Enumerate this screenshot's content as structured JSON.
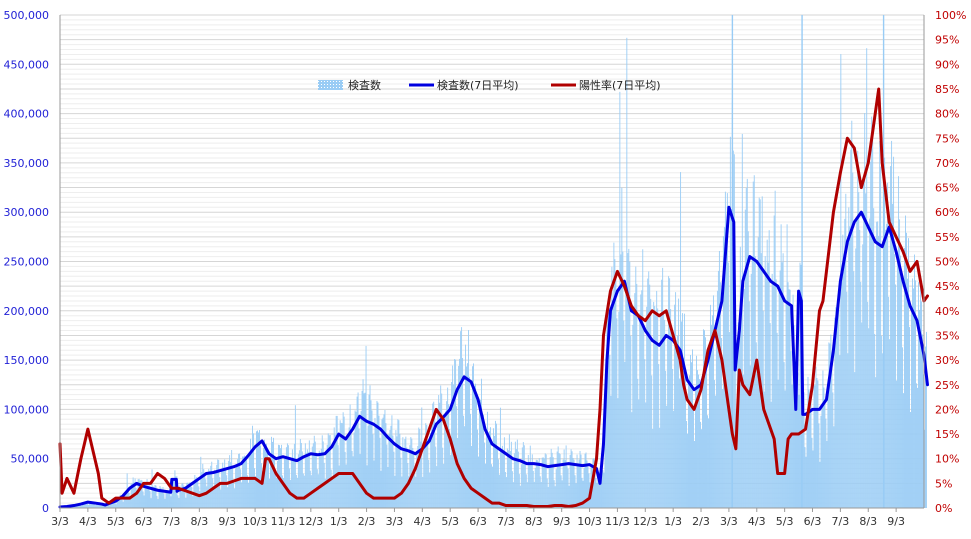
{
  "colors": {
    "bars": "#99ccf5",
    "avg_line": "#0000e0",
    "rate_line": "#b00000",
    "left_axis_text": "#1f1fd6",
    "right_axis_text": "#c00000",
    "grid": "#d6d6d6"
  },
  "chart_data": {
    "type": "bar+line",
    "title": "",
    "legend": {
      "placement": "top-center",
      "items": [
        "検査数",
        "検査数(7日平均)",
        "陽性率(7日平均)"
      ]
    },
    "x_ticks": [
      "3/3",
      "4/3",
      "5/3",
      "6/3",
      "7/3",
      "8/3",
      "9/3",
      "10/3",
      "11/3",
      "12/3",
      "1/3",
      "2/3",
      "3/3",
      "4/3",
      "5/3",
      "6/3",
      "7/3",
      "8/3",
      "9/3",
      "10/3",
      "11/3",
      "12/3",
      "1/3",
      "2/3",
      "3/3",
      "4/3",
      "5/3",
      "6/3",
      "7/3",
      "8/3",
      "9/3"
    ],
    "y_left": {
      "ylim": [
        0,
        500000
      ],
      "ticks": [
        "0",
        "50,000",
        "100,000",
        "150,000",
        "200,000",
        "250,000",
        "300,000",
        "350,000",
        "400,000",
        "450,000",
        "500,000"
      ]
    },
    "y_right": {
      "ylim": [
        0,
        100
      ],
      "ticks": [
        "0%",
        "5%",
        "10%",
        "15%",
        "20%",
        "25%",
        "30%",
        "35%",
        "40%",
        "45%",
        "50%",
        "55%",
        "60%",
        "65%",
        "70%",
        "75%",
        "80%",
        "85%",
        "90%",
        "95%",
        "100%"
      ]
    },
    "grid": true,
    "series": [
      {
        "name": "検査数(7日平均)",
        "axis": "left",
        "points": [
          [
            0,
            1000
          ],
          [
            1,
            1500
          ],
          [
            2,
            2500
          ],
          [
            3,
            4000
          ],
          [
            4,
            6000
          ],
          [
            5,
            5000
          ],
          [
            6,
            4000
          ],
          [
            6.5,
            3000
          ],
          [
            7,
            4500
          ],
          [
            8,
            7000
          ],
          [
            9,
            12000
          ],
          [
            10,
            20000
          ],
          [
            11,
            25000
          ],
          [
            12,
            22000
          ],
          [
            13,
            20000
          ],
          [
            14,
            18000
          ],
          [
            15,
            17000
          ],
          [
            15.9,
            16000
          ],
          [
            16.05,
            29000
          ],
          [
            16.7,
            29000
          ],
          [
            16.8,
            17000
          ],
          [
            17,
            18000
          ],
          [
            18,
            20000
          ],
          [
            19,
            25000
          ],
          [
            20,
            30000
          ],
          [
            21,
            35000
          ],
          [
            22,
            36000
          ],
          [
            23,
            38000
          ],
          [
            24,
            40000
          ],
          [
            25,
            42000
          ],
          [
            26,
            45000
          ],
          [
            27,
            53000
          ],
          [
            28,
            62000
          ],
          [
            29,
            68000
          ],
          [
            30,
            55000
          ],
          [
            31,
            50000
          ],
          [
            32,
            52000
          ],
          [
            33,
            50000
          ],
          [
            34,
            48000
          ],
          [
            35,
            52000
          ],
          [
            36,
            55000
          ],
          [
            37,
            54000
          ],
          [
            38,
            55000
          ],
          [
            39,
            62000
          ],
          [
            40,
            75000
          ],
          [
            41,
            70000
          ],
          [
            42,
            80000
          ],
          [
            43,
            93000
          ],
          [
            44,
            88000
          ],
          [
            45,
            85000
          ],
          [
            46,
            80000
          ],
          [
            47,
            72000
          ],
          [
            48,
            65000
          ],
          [
            49,
            60000
          ],
          [
            50,
            58000
          ],
          [
            51,
            55000
          ],
          [
            52,
            60000
          ],
          [
            53,
            68000
          ],
          [
            54,
            85000
          ],
          [
            55,
            92000
          ],
          [
            56,
            100000
          ],
          [
            57,
            120000
          ],
          [
            58,
            133000
          ],
          [
            59,
            128000
          ],
          [
            60,
            110000
          ],
          [
            61,
            80000
          ],
          [
            62,
            65000
          ],
          [
            63,
            60000
          ],
          [
            64,
            55000
          ],
          [
            65,
            50000
          ],
          [
            66,
            48000
          ],
          [
            67,
            45000
          ],
          [
            68,
            45000
          ],
          [
            69,
            44000
          ],
          [
            70,
            42000
          ],
          [
            71,
            43000
          ],
          [
            72,
            44000
          ],
          [
            73,
            45000
          ],
          [
            74,
            44000
          ],
          [
            75,
            43000
          ],
          [
            76,
            44000
          ],
          [
            77,
            40000
          ],
          [
            77.5,
            25000
          ],
          [
            78,
            65000
          ],
          [
            78.5,
            150000
          ],
          [
            79,
            200000
          ],
          [
            80,
            220000
          ],
          [
            81,
            230000
          ],
          [
            82,
            200000
          ],
          [
            83,
            195000
          ],
          [
            84,
            180000
          ],
          [
            85,
            170000
          ],
          [
            86,
            165000
          ],
          [
            87,
            175000
          ],
          [
            88,
            170000
          ],
          [
            89,
            160000
          ],
          [
            90,
            130000
          ],
          [
            91,
            120000
          ],
          [
            92,
            125000
          ],
          [
            93,
            150000
          ],
          [
            94,
            180000
          ],
          [
            95,
            210000
          ],
          [
            96,
            305000
          ],
          [
            96.7,
            290000
          ],
          [
            96.9,
            140000
          ],
          [
            97.5,
            180000
          ],
          [
            98,
            230000
          ],
          [
            99,
            255000
          ],
          [
            100,
            250000
          ],
          [
            101,
            240000
          ],
          [
            102,
            230000
          ],
          [
            103,
            225000
          ],
          [
            104,
            210000
          ],
          [
            105,
            205000
          ],
          [
            105.6,
            100000
          ],
          [
            106,
            220000
          ],
          [
            106.4,
            210000
          ],
          [
            106.6,
            95000
          ],
          [
            107,
            95000
          ],
          [
            108,
            100000
          ],
          [
            109,
            100000
          ],
          [
            110,
            110000
          ],
          [
            111,
            160000
          ],
          [
            112,
            230000
          ],
          [
            113,
            270000
          ],
          [
            114,
            290000
          ],
          [
            115,
            300000
          ],
          [
            116,
            285000
          ],
          [
            117,
            270000
          ],
          [
            118,
            265000
          ],
          [
            119,
            285000
          ],
          [
            120,
            260000
          ],
          [
            121,
            230000
          ],
          [
            122,
            205000
          ],
          [
            123,
            190000
          ],
          [
            124,
            155000
          ],
          [
            124.5,
            125000
          ]
        ]
      },
      {
        "name": "陽性率(7日平均)",
        "axis": "right",
        "points": [
          [
            0,
            13
          ],
          [
            0.3,
            3
          ],
          [
            1,
            6
          ],
          [
            2,
            3
          ],
          [
            3,
            10
          ],
          [
            3.5,
            13
          ],
          [
            4,
            16
          ],
          [
            5,
            10
          ],
          [
            5.5,
            7
          ],
          [
            6,
            2
          ],
          [
            7,
            1
          ],
          [
            8,
            2
          ],
          [
            9,
            2
          ],
          [
            10,
            2
          ],
          [
            11,
            3
          ],
          [
            12,
            5
          ],
          [
            13,
            5
          ],
          [
            14,
            7
          ],
          [
            15,
            6
          ],
          [
            16,
            4
          ],
          [
            17,
            4
          ],
          [
            18,
            3.5
          ],
          [
            19,
            3
          ],
          [
            20,
            2.5
          ],
          [
            21,
            3
          ],
          [
            22,
            4
          ],
          [
            23,
            5
          ],
          [
            24,
            5
          ],
          [
            25,
            5.5
          ],
          [
            26,
            6
          ],
          [
            27,
            6
          ],
          [
            28,
            6
          ],
          [
            29,
            5
          ],
          [
            29.5,
            10
          ],
          [
            30,
            10
          ],
          [
            31,
            7
          ],
          [
            32,
            5
          ],
          [
            33,
            3
          ],
          [
            34,
            2
          ],
          [
            35,
            2
          ],
          [
            36,
            3
          ],
          [
            37,
            4
          ],
          [
            38,
            5
          ],
          [
            39,
            6
          ],
          [
            40,
            7
          ],
          [
            41,
            7
          ],
          [
            42,
            7
          ],
          [
            43,
            5
          ],
          [
            44,
            3
          ],
          [
            45,
            2
          ],
          [
            46,
            2
          ],
          [
            47,
            2
          ],
          [
            48,
            2
          ],
          [
            49,
            3
          ],
          [
            50,
            5
          ],
          [
            51,
            8
          ],
          [
            52,
            12
          ],
          [
            53,
            16
          ],
          [
            54,
            20
          ],
          [
            55,
            18
          ],
          [
            56,
            14
          ],
          [
            57,
            9
          ],
          [
            58,
            6
          ],
          [
            59,
            4
          ],
          [
            60,
            3
          ],
          [
            61,
            2
          ],
          [
            62,
            1
          ],
          [
            63,
            1
          ],
          [
            64,
            0.5
          ],
          [
            65,
            0.5
          ],
          [
            66,
            0.5
          ],
          [
            67,
            0.5
          ],
          [
            68,
            0.3
          ],
          [
            69,
            0.3
          ],
          [
            70,
            0.3
          ],
          [
            71,
            0.5
          ],
          [
            72,
            0.5
          ],
          [
            73,
            0.3
          ],
          [
            74,
            0.5
          ],
          [
            75,
            1
          ],
          [
            76,
            2
          ],
          [
            77,
            10
          ],
          [
            77.5,
            20
          ],
          [
            78,
            35
          ],
          [
            79,
            44
          ],
          [
            80,
            48
          ],
          [
            81,
            45
          ],
          [
            82,
            41
          ],
          [
            83,
            39
          ],
          [
            84,
            38
          ],
          [
            85,
            40
          ],
          [
            86,
            39
          ],
          [
            87,
            40
          ],
          [
            88,
            35
          ],
          [
            89,
            30
          ],
          [
            89.5,
            25
          ],
          [
            90,
            22
          ],
          [
            91,
            20
          ],
          [
            92,
            24
          ],
          [
            93,
            32
          ],
          [
            94,
            36
          ],
          [
            95,
            30
          ],
          [
            96,
            20
          ],
          [
            96.5,
            15
          ],
          [
            97,
            12
          ],
          [
            97.5,
            28
          ],
          [
            98,
            25
          ],
          [
            99,
            23
          ],
          [
            100,
            30
          ],
          [
            101,
            20
          ],
          [
            102,
            16
          ],
          [
            102.5,
            14
          ],
          [
            103,
            7
          ],
          [
            104,
            7
          ],
          [
            104.5,
            14
          ],
          [
            105,
            15
          ],
          [
            106,
            15
          ],
          [
            107,
            16
          ],
          [
            108,
            25
          ],
          [
            109,
            40
          ],
          [
            109.5,
            42
          ],
          [
            110,
            48
          ],
          [
            111,
            60
          ],
          [
            112,
            68
          ],
          [
            113,
            75
          ],
          [
            114,
            73
          ],
          [
            115,
            65
          ],
          [
            116,
            70
          ],
          [
            117,
            80
          ],
          [
            117.5,
            85
          ],
          [
            118,
            70
          ],
          [
            119,
            58
          ],
          [
            120,
            55
          ],
          [
            121,
            52
          ],
          [
            122,
            48
          ],
          [
            123,
            50
          ],
          [
            124,
            42
          ],
          [
            124.5,
            43
          ]
        ]
      },
      {
        "name": "検査数",
        "axis": "left",
        "note": "daily bars"
      }
    ]
  }
}
